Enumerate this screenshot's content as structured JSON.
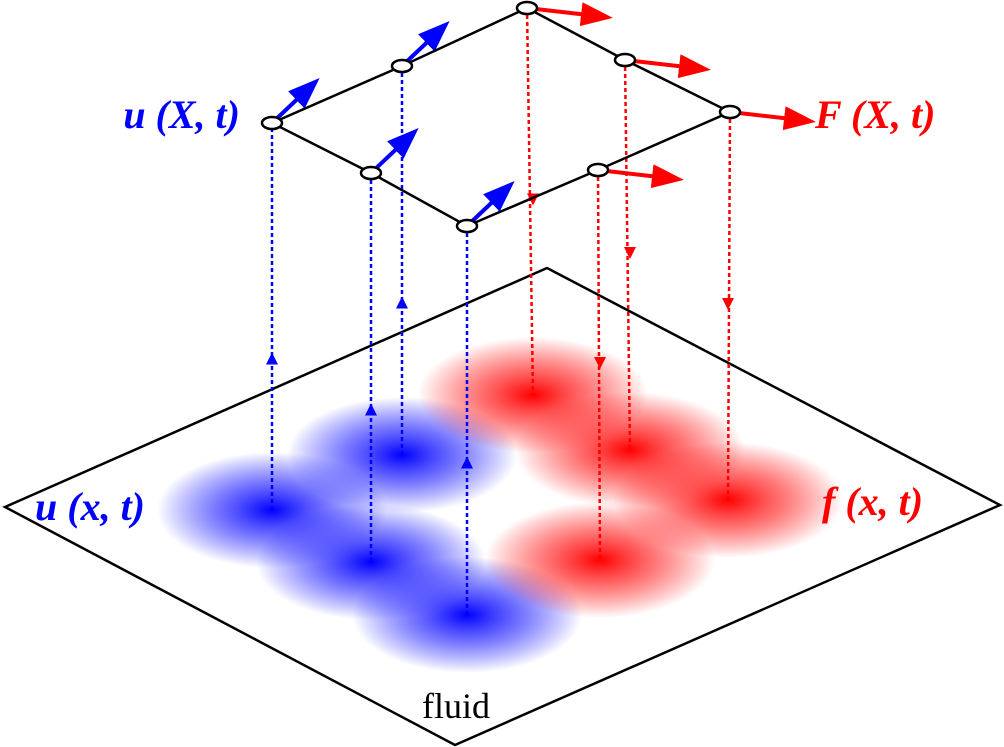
{
  "labels": {
    "lagrangian_velocity": "u (X, t)",
    "lagrangian_force": "F (X, t)",
    "eulerian_velocity": "u (x, t)",
    "eulerian_force": "f (x, t)",
    "plane": "fluid"
  }
}
